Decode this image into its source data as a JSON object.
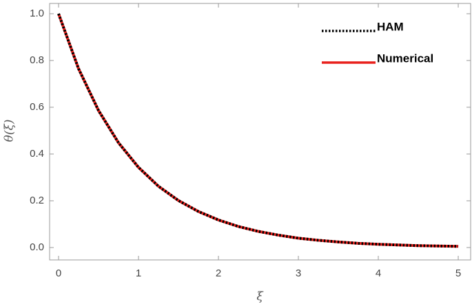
{
  "chart_data": {
    "type": "line",
    "xlabel": "ξ",
    "ylabel": "θ(ξ)",
    "x": [
      0,
      0.25,
      0.5,
      0.75,
      1,
      1.25,
      1.5,
      1.75,
      2,
      2.25,
      2.5,
      2.75,
      3,
      3.25,
      3.5,
      3.75,
      4,
      4.5,
      5
    ],
    "series": [
      {
        "name": "HAM",
        "color": "#000000",
        "style": "dotted",
        "values": [
          1.0,
          0.765,
          0.586,
          0.448,
          0.343,
          0.262,
          0.201,
          0.154,
          0.118,
          0.09,
          0.069,
          0.053,
          0.04,
          0.031,
          0.024,
          0.018,
          0.014,
          0.008,
          0.005
        ]
      },
      {
        "name": "Numerical",
        "color": "#e8201c",
        "style": "solid",
        "values": [
          1.0,
          0.765,
          0.586,
          0.448,
          0.343,
          0.262,
          0.201,
          0.154,
          0.118,
          0.09,
          0.069,
          0.053,
          0.04,
          0.031,
          0.024,
          0.018,
          0.014,
          0.008,
          0.005
        ]
      }
    ],
    "xlim": [
      -0.112,
      5.155
    ],
    "ylim": [
      -0.053,
      1.044
    ],
    "xticks": [
      0,
      1,
      2,
      3,
      4,
      5
    ],
    "yticks": [
      {
        "value": 0,
        "label": "0.0"
      },
      0.2,
      0.4,
      0.6,
      0.8,
      {
        "value": 1,
        "label": "1.0"
      }
    ],
    "legend": "upper right"
  }
}
